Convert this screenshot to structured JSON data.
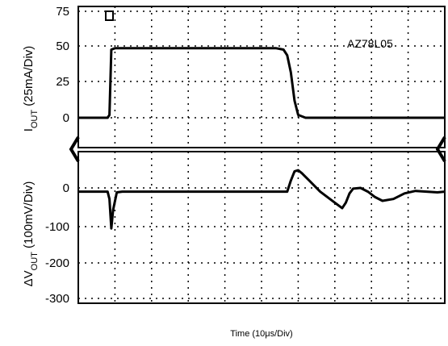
{
  "chart_data": [
    {
      "type": "line",
      "panel": "top",
      "annotation": "AZ78L05",
      "ylabel_main": "I",
      "ylabel_sub": "OUT",
      "ylabel_rest": " (25mA/Div)",
      "y_ticks": [
        "75",
        "50",
        "25",
        "0"
      ],
      "ylim": [
        -6,
        75
      ],
      "xlim": [
        0,
        100
      ],
      "grid": true,
      "series": [
        {
          "x": [
            0,
            8,
            8.5,
            9.0,
            10,
            20,
            30,
            40,
            50,
            54,
            56,
            57,
            58,
            59,
            60,
            62,
            70,
            80,
            90,
            98,
            100
          ],
          "y": [
            0,
            0,
            2,
            48,
            49,
            49,
            49,
            49,
            49,
            49,
            48,
            44,
            32,
            12,
            2,
            0,
            0,
            0,
            0,
            0,
            0
          ]
        }
      ]
    },
    {
      "type": "line",
      "panel": "bottom",
      "ylabel_main": "ΔV",
      "ylabel_sub": "OUT",
      "ylabel_rest": " (100mV/Div)",
      "y_ticks": [
        "0",
        "-100",
        "-200",
        "-300"
      ],
      "ylim": [
        -300,
        60
      ],
      "xlim": [
        0,
        100
      ],
      "grid": true,
      "series": [
        {
          "x": [
            0,
            8,
            8.5,
            9.0,
            9.5,
            10.5,
            12,
            20,
            30,
            40,
            50,
            56,
            57,
            58,
            59,
            60,
            61,
            62,
            64,
            66,
            68,
            70,
            72,
            73,
            74,
            75,
            77,
            79,
            81,
            83,
            86,
            89,
            92,
            95,
            98,
            100
          ],
          "y": [
            -10,
            -10,
            -30,
            -110,
            -60,
            -12,
            -10,
            -10,
            -10,
            -10,
            -10,
            -10,
            -10,
            20,
            45,
            48,
            40,
            30,
            10,
            -10,
            -25,
            -40,
            -55,
            -40,
            -15,
            -2,
            0,
            -10,
            -25,
            -35,
            -30,
            -15,
            -8,
            -10,
            -12,
            -10
          ]
        }
      ]
    }
  ],
  "xlabel": "Time (10μs/Div)"
}
